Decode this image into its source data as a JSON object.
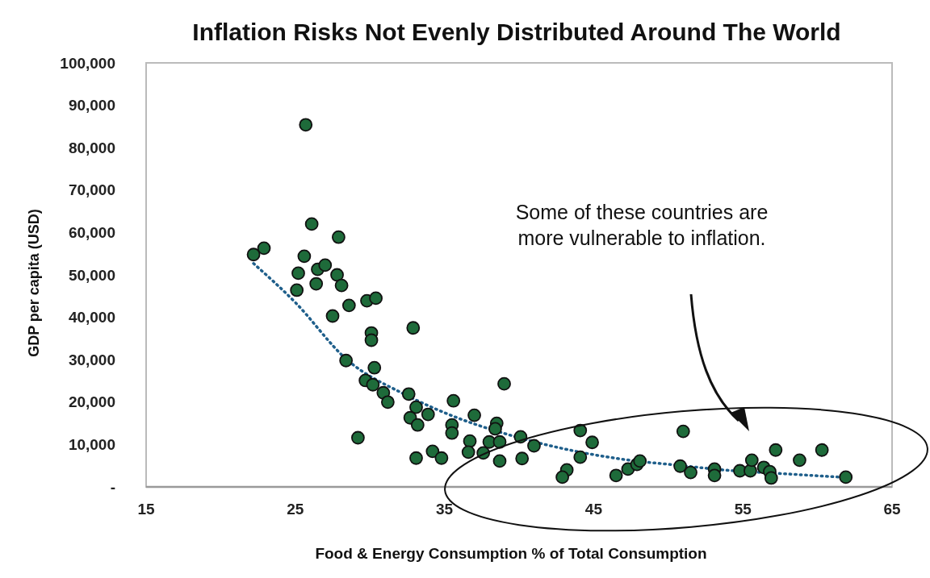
{
  "chart_data": {
    "type": "scatter",
    "title": "Inflation Risks Not Evenly Distributed Around The World",
    "xlabel": "Food & Energy Consumption % of Total Consumption",
    "ylabel": "GDP per capita (USD)",
    "annotations": [
      "Some of these countries are more vulnerable to inflation."
    ],
    "xlim": [
      15,
      65
    ],
    "xticks": [
      15,
      25,
      35,
      45,
      55,
      65
    ],
    "ylim": [
      0,
      100000
    ],
    "yticks": [
      {
        "value": 0,
        "label": "-"
      },
      {
        "value": 10000,
        "label": "10,000"
      },
      {
        "value": 20000,
        "label": "20,000"
      },
      {
        "value": 30000,
        "label": "30,000"
      },
      {
        "value": 40000,
        "label": "40,000"
      },
      {
        "value": 50000,
        "label": "50,000"
      },
      {
        "value": 60000,
        "label": "60,000"
      },
      {
        "value": 70000,
        "label": "70,000"
      },
      {
        "value": 80000,
        "label": "80,000"
      },
      {
        "value": 90000,
        "label": "90,000"
      },
      {
        "value": 100000,
        "label": "100,000"
      }
    ],
    "grid": false,
    "series": [
      {
        "color": "#1e6b3a",
        "marker": "circle",
        "x": [
          25.7,
          26.1,
          27.9,
          22.2,
          22.9,
          25.6,
          25.2,
          25.1,
          26.5,
          27.0,
          26.4,
          27.8,
          28.1,
          28.6,
          27.5,
          29.8,
          30.4,
          30.1,
          30.1,
          28.4,
          32.9,
          30.3,
          29.7,
          30.2,
          30.9,
          31.2,
          32.6,
          33.1,
          33.9,
          32.7,
          33.2,
          29.2,
          33.1,
          34.2,
          34.8,
          39.0,
          35.6,
          37.0,
          35.5,
          35.5,
          38.5,
          38.4,
          36.7,
          38.0,
          38.7,
          40.1,
          41.0,
          36.6,
          37.6,
          38.7,
          40.2,
          44.1,
          44.9,
          44.1,
          43.2,
          42.9,
          46.5,
          47.3,
          47.9,
          48.1,
          50.8,
          51.0,
          51.5,
          53.1,
          53.1,
          54.8,
          55.5,
          55.6,
          57.2,
          56.4,
          56.8,
          56.9,
          58.8,
          60.3,
          61.9
        ],
        "values": [
          85400,
          62000,
          58900,
          54800,
          56300,
          54400,
          50400,
          46400,
          51300,
          52300,
          47900,
          50000,
          47500,
          42800,
          40300,
          43900,
          44500,
          36300,
          34600,
          29800,
          37500,
          28100,
          25100,
          24100,
          22200,
          20000,
          21900,
          18800,
          17100,
          16300,
          14600,
          11600,
          6800,
          8400,
          6800,
          24300,
          20300,
          16900,
          14600,
          12700,
          15000,
          13700,
          10800,
          10600,
          10600,
          11800,
          9700,
          8200,
          8000,
          6100,
          6700,
          13300,
          10500,
          7000,
          4000,
          2300,
          2700,
          4200,
          5300,
          6100,
          4900,
          13100,
          3400,
          4200,
          2700,
          3800,
          3800,
          6300,
          8700,
          4600,
          3600,
          2100,
          6300,
          8700,
          2300
        ]
      },
      {
        "type": "line",
        "color": "#1f5f8b",
        "marker": "none",
        "line_style": "dotted",
        "x": [
          22.2,
          25,
          28.4,
          32.4,
          35,
          39.8,
          43.8,
          47.4,
          50.7,
          53.7,
          57.3,
          61.6
        ],
        "values": [
          52700,
          43500,
          30200,
          21700,
          17500,
          11800,
          8400,
          6300,
          5100,
          4000,
          3200,
          2300
        ]
      }
    ]
  }
}
